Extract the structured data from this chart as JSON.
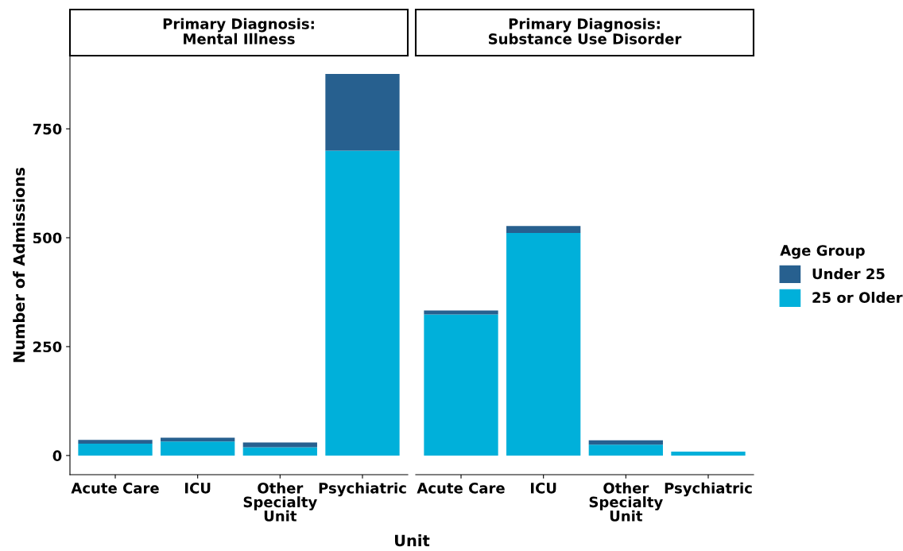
{
  "chart_data": [
    {
      "type": "bar",
      "stacked": true,
      "title": "Primary Diagnosis:\nMental Illness",
      "ylabel": "Number of Admissions",
      "xlabel": "Unit",
      "categories": [
        "Acute Care",
        "ICU",
        "Other\nSpecialty\nUnit",
        "Psychiatric"
      ],
      "ylim": [
        -44,
        918
      ],
      "yticks": [
        0,
        250,
        500,
        750
      ],
      "grid": false,
      "legend": "right",
      "legend_title": "Age Group",
      "series": [
        {
          "name": "25 or Older",
          "color": "#00b0da",
          "values": [
            27,
            32,
            19,
            700
          ]
        },
        {
          "name": "Under 25",
          "color": "#27608f",
          "values": [
            9,
            9,
            11,
            176
          ]
        }
      ]
    },
    {
      "type": "bar",
      "stacked": true,
      "title": "Primary Diagnosis:\nSubstance Use Disorder",
      "categories": [
        "Acute Care",
        "ICU",
        "Other\nSpecialty\nUnit",
        "Psychiatric"
      ],
      "ylim": [
        -44,
        918
      ],
      "yticks": [
        0,
        250,
        500,
        750
      ],
      "tick_labels": "x",
      "grid": false,
      "series": [
        {
          "color": "#00b0da",
          "values": [
            324,
            511,
            25,
            9
          ]
        },
        {
          "color": "#27608f",
          "values": [
            9,
            16,
            10,
            0
          ]
        }
      ]
    }
  ]
}
